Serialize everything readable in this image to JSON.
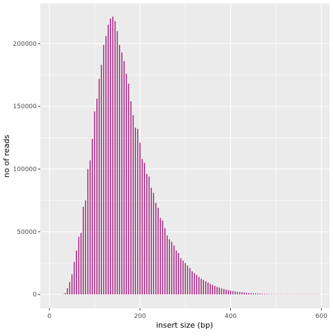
{
  "chart_data": {
    "type": "bar",
    "title": "",
    "xlabel": "insert size (bp)",
    "ylabel": "no of reads",
    "xlim": [
      -20,
      618
    ],
    "ylim": [
      -11000,
      232000
    ],
    "x_ticks": [
      0,
      200,
      400,
      600
    ],
    "x_tick_labels": [
      "0",
      "200",
      "400",
      "600"
    ],
    "y_ticks": [
      0,
      50000,
      100000,
      150000,
      200000
    ],
    "y_tick_labels": [
      "0",
      "50000",
      "100000",
      "150000",
      "200000"
    ],
    "grid": true,
    "legend": "none",
    "bar_color": "#a0187a",
    "panel_background": "#ebebeb",
    "grid_color": "#ffffff",
    "series": [
      {
        "x": [
          30,
          35,
          40,
          45,
          50,
          55,
          60,
          65,
          70,
          75,
          80,
          85,
          90,
          95,
          100,
          105,
          110,
          115,
          120,
          125,
          130,
          135,
          140,
          145,
          150,
          155,
          160,
          165,
          170,
          175,
          180,
          185,
          190,
          195,
          200,
          205,
          210,
          215,
          220,
          225,
          230,
          235,
          240,
          245,
          250,
          255,
          260,
          265,
          270,
          275,
          280,
          285,
          290,
          295,
          300,
          305,
          310,
          315,
          320,
          325,
          330,
          335,
          340,
          345,
          350,
          355,
          360,
          365,
          370,
          375,
          380,
          385,
          390,
          395,
          400,
          405,
          410,
          415,
          420,
          425,
          430,
          435,
          440,
          445,
          450,
          455,
          460,
          465,
          470,
          475,
          480,
          485,
          490,
          495,
          500,
          505,
          510,
          515,
          520,
          525,
          530,
          535,
          540,
          545,
          550,
          555,
          560,
          565,
          570,
          575,
          580,
          585,
          590,
          595
        ],
        "values": [
          0,
          1000,
          5000,
          10000,
          16000,
          26000,
          35000,
          46000,
          49000,
          70000,
          75000,
          100000,
          107000,
          124000,
          146000,
          156000,
          172000,
          183000,
          199000,
          206000,
          215000,
          220000,
          221500,
          218000,
          210000,
          199000,
          193000,
          186000,
          176000,
          168000,
          154000,
          143000,
          133000,
          132000,
          121000,
          108000,
          105000,
          96000,
          94000,
          85000,
          81000,
          73000,
          69000,
          61000,
          59000,
          53000,
          47000,
          44000,
          42000,
          39000,
          35000,
          33000,
          29000,
          27000,
          25000,
          23000,
          21000,
          18500,
          17000,
          15500,
          14000,
          12500,
          11500,
          10500,
          9500,
          8500,
          7600,
          6800,
          6000,
          5500,
          4800,
          4300,
          3800,
          3400,
          3000,
          2700,
          2400,
          2100,
          1900,
          1700,
          1500,
          1300,
          1150,
          1000,
          900,
          800,
          700,
          620,
          550,
          480,
          420,
          370,
          320,
          280,
          250,
          220,
          190,
          170,
          150,
          130,
          115,
          100,
          90,
          80,
          70,
          60,
          50,
          45,
          40,
          35,
          30,
          25,
          20,
          15
        ]
      }
    ]
  }
}
